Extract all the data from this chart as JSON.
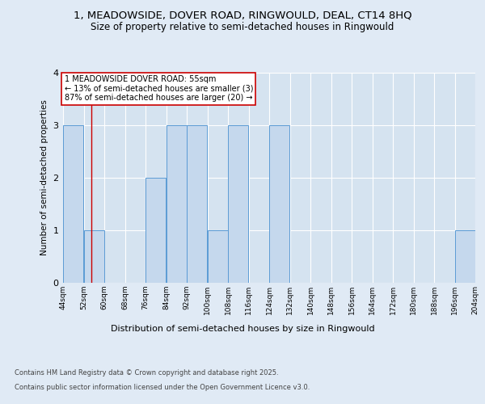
{
  "title_line1": "1, MEADOWSIDE, DOVER ROAD, RINGWOULD, DEAL, CT14 8HQ",
  "title_line2": "Size of property relative to semi-detached houses in Ringwould",
  "xlabel": "Distribution of semi-detached houses by size in Ringwould",
  "ylabel": "Number of semi-detached properties",
  "bins": [
    44,
    52,
    60,
    68,
    76,
    84,
    92,
    100,
    108,
    116,
    124,
    132,
    140,
    148,
    156,
    164,
    172,
    180,
    188,
    196,
    204
  ],
  "counts": [
    3,
    1,
    0,
    0,
    2,
    3,
    3,
    1,
    3,
    0,
    3,
    0,
    0,
    0,
    0,
    0,
    0,
    0,
    0,
    1
  ],
  "bar_color": "#c5d8ed",
  "bar_edge_color": "#5b9bd5",
  "subject_size": 55,
  "subject_line_color": "#cc0000",
  "annotation_text": "1 MEADOWSIDE DOVER ROAD: 55sqm\n← 13% of semi-detached houses are smaller (3)\n87% of semi-detached houses are larger (20) →",
  "annotation_box_color": "#ffffff",
  "annotation_box_edge_color": "#cc0000",
  "ylim": [
    0,
    4
  ],
  "yticks": [
    0,
    1,
    2,
    3,
    4
  ],
  "footer_line1": "Contains HM Land Registry data © Crown copyright and database right 2025.",
  "footer_line2": "Contains public sector information licensed under the Open Government Licence v3.0.",
  "background_color": "#e0eaf5",
  "plot_bg_color": "#d5e3f0"
}
